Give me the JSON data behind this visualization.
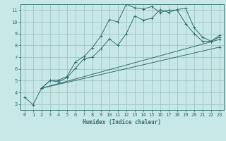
{
  "background_color": "#c8e8e8",
  "grid_color": "#9abcbc",
  "line_color": "#2d6e6a",
  "marker": "+",
  "xlabel": "Humidex (Indice chaleur)",
  "xlim": [
    -0.5,
    23.5
  ],
  "ylim": [
    2.5,
    11.5
  ],
  "xticks": [
    0,
    1,
    2,
    3,
    4,
    5,
    6,
    7,
    8,
    9,
    10,
    11,
    12,
    13,
    14,
    15,
    16,
    17,
    18,
    19,
    20,
    21,
    22,
    23
  ],
  "yticks": [
    3,
    4,
    5,
    6,
    7,
    8,
    9,
    10,
    11
  ],
  "series": [
    {
      "x": [
        0,
        1,
        2,
        3,
        4,
        5,
        6,
        7,
        8,
        9,
        10,
        11,
        12,
        13,
        14,
        15,
        16,
        17,
        18,
        19,
        20,
        21,
        22,
        23
      ],
      "y": [
        3.6,
        2.95,
        4.35,
        5.0,
        5.05,
        5.35,
        6.6,
        7.05,
        7.8,
        8.8,
        10.2,
        10.0,
        11.5,
        11.2,
        11.1,
        11.3,
        10.8,
        11.0,
        11.0,
        9.85,
        9.0,
        8.35,
        8.35,
        8.85
      ],
      "has_marker": true
    },
    {
      "x": [
        2,
        3,
        4,
        5,
        6,
        7,
        8,
        9,
        10,
        11,
        12,
        13,
        14,
        15,
        16,
        17,
        18,
        19,
        20,
        21,
        22,
        23
      ],
      "y": [
        4.35,
        5.0,
        4.9,
        5.25,
        6.05,
        6.85,
        7.0,
        7.7,
        8.55,
        8.0,
        9.0,
        10.5,
        10.15,
        10.3,
        11.05,
        10.8,
        11.05,
        11.15,
        9.5,
        8.7,
        8.35,
        8.7
      ],
      "has_marker": true
    },
    {
      "x": [
        2,
        23
      ],
      "y": [
        4.35,
        8.5
      ],
      "has_marker": true
    },
    {
      "x": [
        2,
        23
      ],
      "y": [
        4.35,
        7.85
      ],
      "has_marker": true
    }
  ],
  "figsize": [
    3.2,
    2.0
  ],
  "dpi": 100
}
